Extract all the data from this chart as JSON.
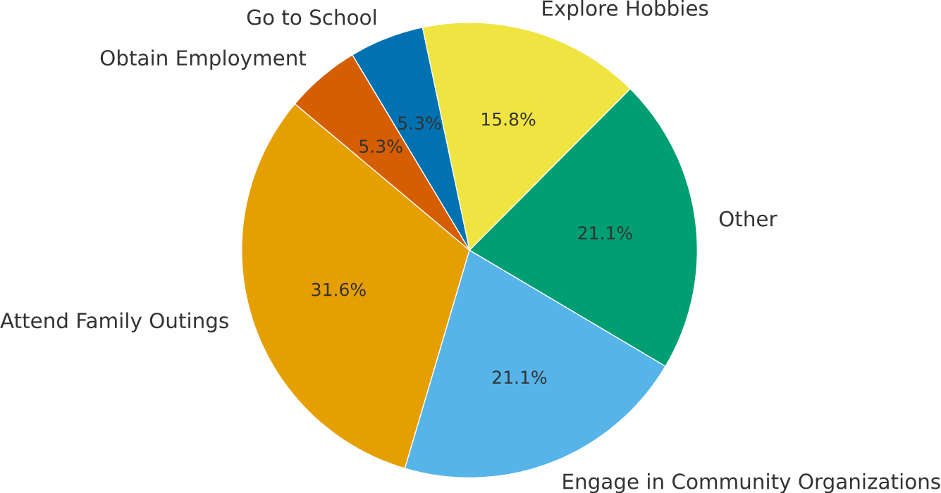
{
  "chart_data": {
    "type": "pie",
    "categories": [
      "Attend Family Outings",
      "Engage in Community Organizations",
      "Other",
      "Explore Hobbies",
      "Go to School",
      "Obtain Employment"
    ],
    "values": [
      31.6,
      21.1,
      21.1,
      15.8,
      5.3,
      5.3
    ],
    "value_labels": [
      "31.6%",
      "21.1%",
      "21.1%",
      "15.8%",
      "5.3%",
      "5.3%"
    ],
    "colors": [
      "#e69f00",
      "#56b4e9",
      "#009e73",
      "#f0e442",
      "#0072b2",
      "#d55e00"
    ]
  }
}
